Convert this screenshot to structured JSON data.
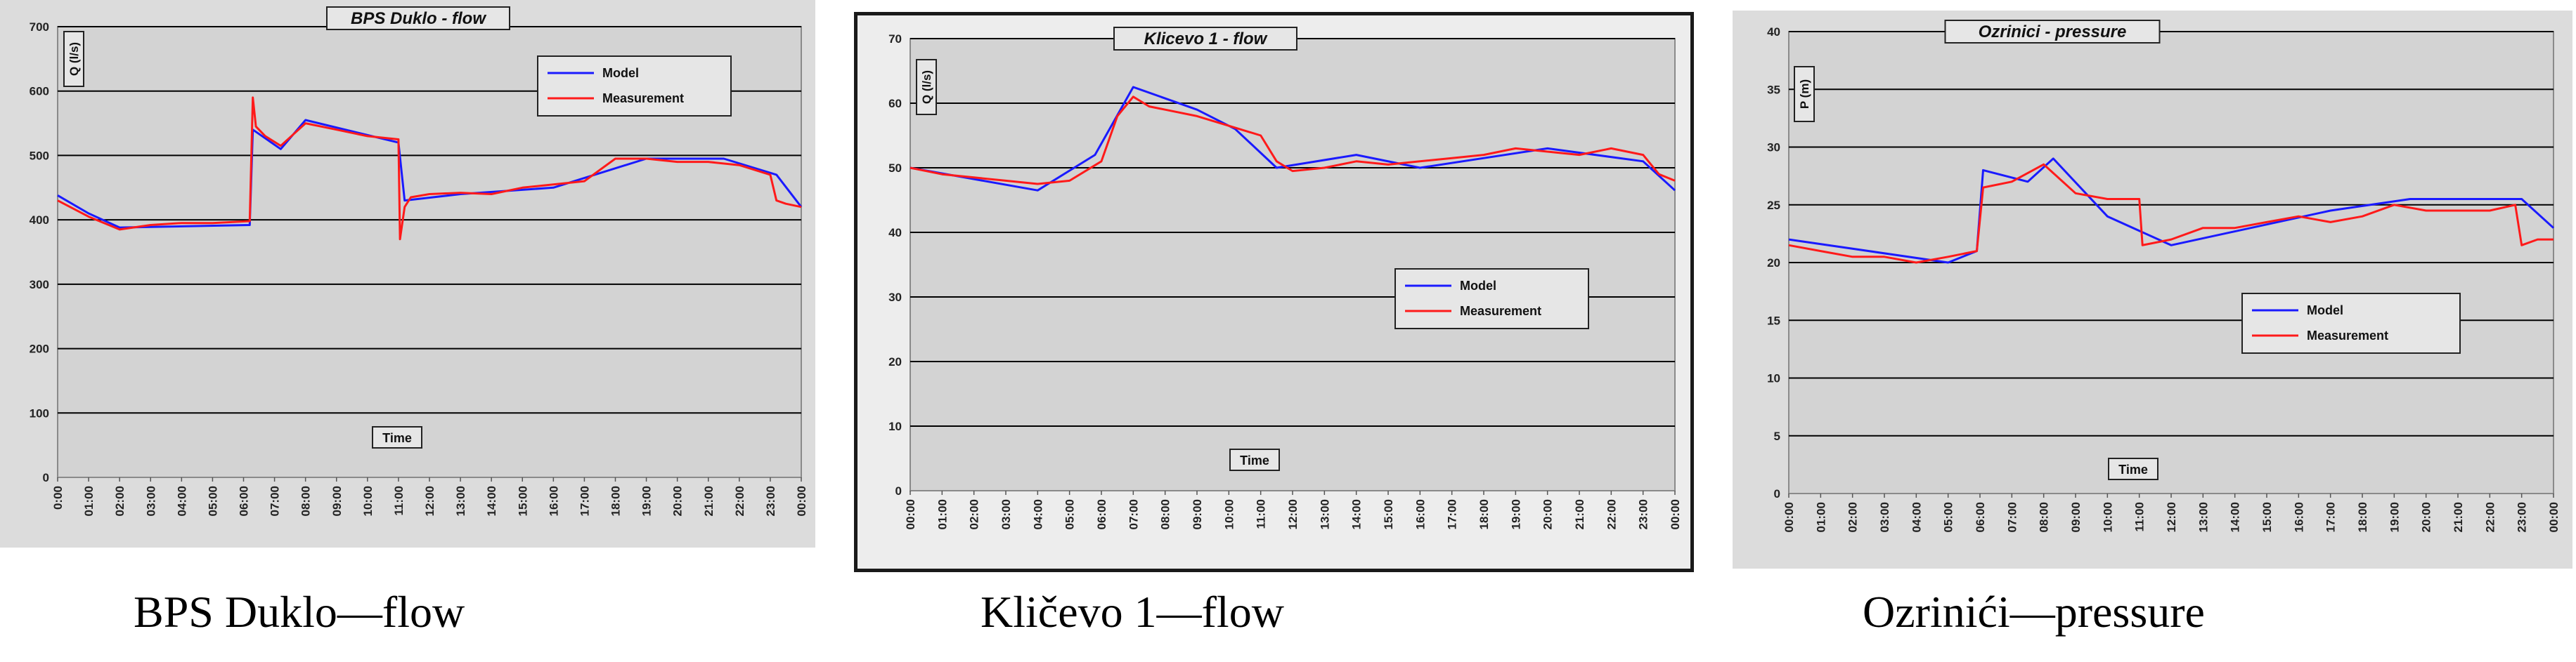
{
  "chart_data": [
    {
      "type": "line",
      "title": "BPS Duklo - flow",
      "caption": "BPS Duklo—flow",
      "ylabel": "Q (l/s)",
      "xlabel": "Time",
      "ylim": [
        0,
        700
      ],
      "yticks": [
        0,
        100,
        200,
        300,
        400,
        500,
        600,
        700
      ],
      "xticks": [
        "0:00",
        "01:00",
        "02:00",
        "03:00",
        "04:00",
        "05:00",
        "06:00",
        "07:00",
        "08:00",
        "09:00",
        "10:00",
        "11:00",
        "12:00",
        "13:00",
        "14:00",
        "15:00",
        "16:00",
        "17:00",
        "18:00",
        "19:00",
        "20:00",
        "21:00",
        "22:00",
        "23:00",
        "00:00"
      ],
      "grid": true,
      "legend_position": "top-right",
      "series": [
        {
          "name": "Model",
          "color": "#1a1aff",
          "x": [
            0,
            1,
            2,
            6.2,
            6.3,
            7.2,
            8,
            11,
            11.2,
            13,
            16,
            19,
            21.5,
            23.2,
            24
          ],
          "y": [
            438,
            410,
            388,
            392,
            540,
            510,
            555,
            520,
            430,
            440,
            450,
            495,
            495,
            470,
            420
          ]
        },
        {
          "name": "Measurement",
          "color": "#ff1a1a",
          "x": [
            0,
            1,
            2,
            3,
            4,
            5,
            6.2,
            6.3,
            6.4,
            6.7,
            7.2,
            8,
            9,
            10,
            11,
            11.05,
            11.2,
            11.4,
            12,
            13,
            14,
            15,
            16,
            17,
            18,
            19,
            20,
            21,
            22,
            23,
            23.2,
            23.5,
            24
          ],
          "y": [
            430,
            405,
            385,
            392,
            395,
            395,
            398,
            590,
            545,
            530,
            515,
            550,
            540,
            530,
            525,
            370,
            420,
            435,
            440,
            442,
            440,
            450,
            455,
            460,
            495,
            495,
            490,
            490,
            485,
            470,
            430,
            425,
            420
          ]
        }
      ]
    },
    {
      "type": "line",
      "title": "Klicevo 1 - flow",
      "caption": "Kličevo 1—flow",
      "ylabel": "Q (l/s)",
      "xlabel": "Time",
      "ylim": [
        0,
        70
      ],
      "yticks": [
        0,
        10,
        20,
        30,
        40,
        50,
        60,
        70
      ],
      "xticks": [
        "00:00",
        "01:00",
        "02:00",
        "03:00",
        "04:00",
        "05:00",
        "06:00",
        "07:00",
        "08:00",
        "09:00",
        "10:00",
        "11:00",
        "12:00",
        "13:00",
        "14:00",
        "15:00",
        "16:00",
        "17:00",
        "18:00",
        "19:00",
        "20:00",
        "21:00",
        "22:00",
        "23:00",
        "00:00"
      ],
      "grid": true,
      "legend_position": "middle-right",
      "series": [
        {
          "name": "Model",
          "color": "#1a1aff",
          "x": [
            0,
            4,
            5.8,
            7,
            9,
            10.2,
            11.5,
            14,
            16,
            20,
            23,
            24
          ],
          "y": [
            50,
            46.5,
            52,
            62.5,
            59,
            56,
            50,
            52,
            50,
            53,
            51,
            46.5
          ]
        },
        {
          "name": "Measurement",
          "color": "#ff1a1a",
          "x": [
            0,
            1,
            2,
            3,
            4,
            5,
            6,
            6.5,
            7,
            7.5,
            8,
            9,
            10,
            11,
            11.5,
            12,
            13,
            14,
            15,
            16,
            17,
            18,
            19,
            20,
            21,
            22,
            23,
            23.5,
            24
          ],
          "y": [
            50,
            49,
            48.5,
            48,
            47.5,
            48,
            51,
            58,
            61,
            59.5,
            59,
            58,
            56.5,
            55,
            51,
            49.5,
            50,
            51,
            50.5,
            51,
            51.5,
            52,
            53,
            52.5,
            52,
            53,
            52,
            49,
            48
          ]
        }
      ]
    },
    {
      "type": "line",
      "title": "Ozrinici - pressure",
      "caption": "Ozrinići—pressure",
      "ylabel": "P (m)",
      "xlabel": "Time",
      "ylim": [
        0,
        40
      ],
      "yticks": [
        0,
        5,
        10,
        15,
        20,
        25,
        30,
        35,
        40
      ],
      "xticks": [
        "00:00",
        "01:00",
        "02:00",
        "03:00",
        "04:00",
        "05:00",
        "06:00",
        "07:00",
        "08:00",
        "09:00",
        "10:00",
        "11:00",
        "12:00",
        "13:00",
        "14:00",
        "15:00",
        "16:00",
        "17:00",
        "18:00",
        "19:00",
        "20:00",
        "21:00",
        "22:00",
        "23:00",
        "00:00"
      ],
      "grid": true,
      "legend_position": "middle-right",
      "series": [
        {
          "name": "Model",
          "color": "#1a1aff",
          "x": [
            0,
            5,
            5.9,
            6.1,
            7.5,
            8.3,
            10,
            12,
            17,
            19.5,
            23,
            24
          ],
          "y": [
            22,
            20,
            21,
            28,
            27,
            29,
            24,
            21.5,
            24.5,
            25.5,
            25.5,
            23
          ]
        },
        {
          "name": "Measurement",
          "color": "#ff1a1a",
          "x": [
            0,
            1,
            2,
            3,
            4,
            5,
            5.9,
            6.1,
            7,
            8,
            9,
            10,
            11,
            11.1,
            12,
            13,
            14,
            15,
            16,
            17,
            18,
            19,
            20,
            21,
            22,
            22.8,
            23,
            23.5,
            24
          ],
          "y": [
            21.5,
            21,
            20.5,
            20.5,
            20,
            20.5,
            21,
            26.5,
            27,
            28.5,
            26,
            25.5,
            25.5,
            21.5,
            22,
            23,
            23,
            23.5,
            24,
            23.5,
            24,
            25,
            24.5,
            24.5,
            24.5,
            25,
            21.5,
            22,
            22
          ]
        }
      ]
    }
  ]
}
